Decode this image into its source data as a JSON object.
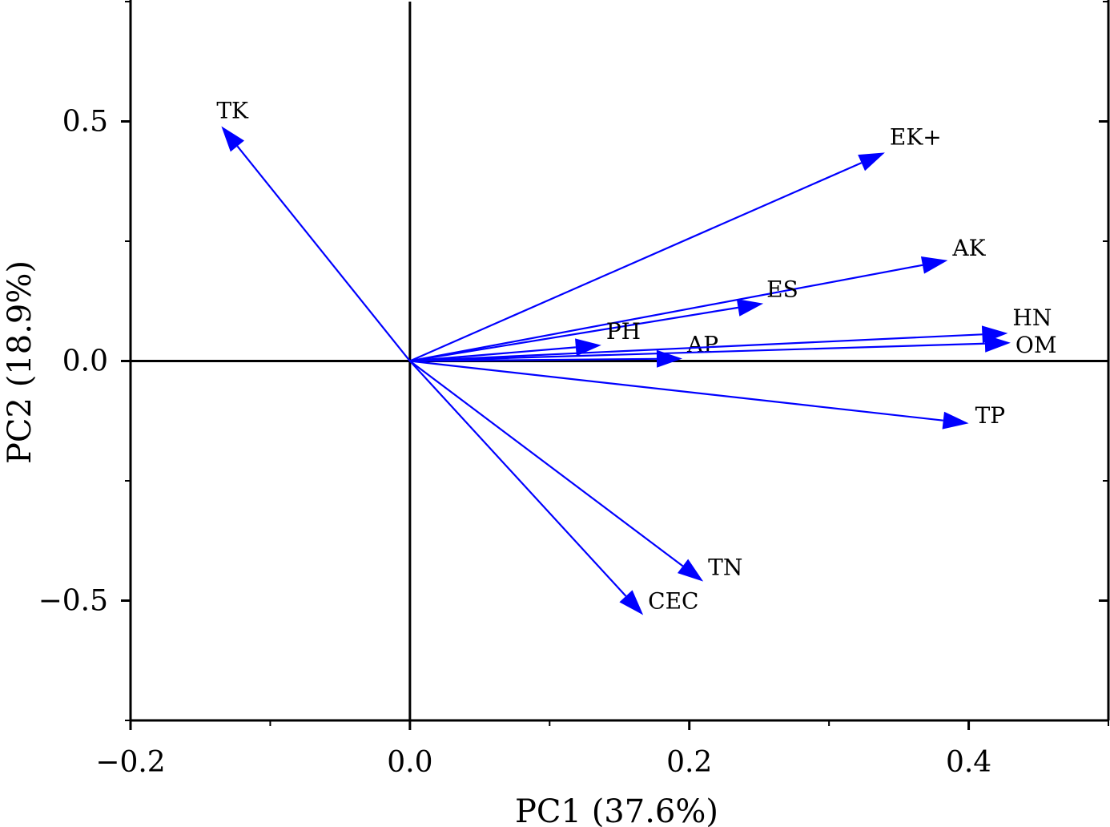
{
  "colors": {
    "vector": "#0000ff",
    "axes": "#000000",
    "background": "#ffffff"
  },
  "chart_data": {
    "type": "scatter",
    "subtype": "biplot-loading-vectors",
    "xlabel": "PC1 (37.6%)",
    "ylabel": "PC2 (18.9%)",
    "xlim": [
      -0.2,
      0.5
    ],
    "ylim": [
      -0.75,
      0.75
    ],
    "xticks": [
      -0.2,
      0.0,
      0.2,
      0.4
    ],
    "xtick_labels": [
      "−0.2",
      "0.0",
      "0.2",
      "0.4"
    ],
    "yticks": [
      -0.5,
      0.0,
      0.5
    ],
    "ytick_labels": [
      "−0.5",
      "0.0",
      "0.5"
    ],
    "grid": false,
    "origin_lines": true,
    "vectors": [
      {
        "name": "TK",
        "x": -0.135,
        "y": 0.49
      },
      {
        "name": "EK+",
        "x": 0.34,
        "y": 0.435
      },
      {
        "name": "AK",
        "x": 0.385,
        "y": 0.21
      },
      {
        "name": "ES",
        "x": 0.253,
        "y": 0.12
      },
      {
        "name": "PH",
        "x": 0.137,
        "y": 0.033
      },
      {
        "name": "AP",
        "x": 0.195,
        "y": 0.005
      },
      {
        "name": "HN",
        "x": 0.428,
        "y": 0.058
      },
      {
        "name": "OM",
        "x": 0.43,
        "y": 0.038
      },
      {
        "name": "TP",
        "x": 0.4,
        "y": -0.13
      },
      {
        "name": "TN",
        "x": 0.21,
        "y": -0.46
      },
      {
        "name": "CEC",
        "x": 0.167,
        "y": -0.53
      }
    ]
  }
}
